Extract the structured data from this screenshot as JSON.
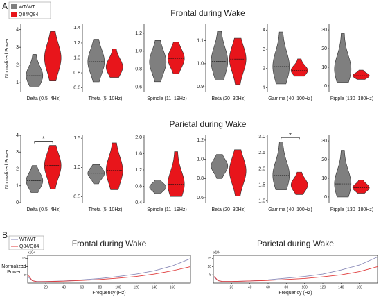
{
  "panel_labels": [
    "A",
    "B"
  ],
  "legend": [
    "WT/WT",
    "Q84/Q84"
  ],
  "colors": [
    "#7f7f7f",
    "#e8151b"
  ],
  "section_titles": [
    "Frontal during Wake",
    "Parietal during Wake"
  ],
  "chart_data": [
    {
      "type": "violin",
      "ylabel": "Normalized Power",
      "xlabel": "Delta (0.5–4Hz)",
      "ylim": [
        0.5,
        4.3
      ],
      "yticks": [
        1,
        2,
        3,
        4
      ],
      "groups": [
        {
          "median": 1.4,
          "min": 0.8,
          "max": 2.6
        },
        {
          "median": 2.4,
          "min": 1.1,
          "max": 3.9
        }
      ]
    },
    {
      "type": "violin",
      "xlabel": "Theta (5–10Hz)",
      "ylim": [
        0.55,
        1.45
      ],
      "yticks": [
        0.6,
        0.8,
        {
          "value": 1,
          "label": "1.0"
        },
        1.2,
        1.4
      ],
      "groups": [
        {
          "median": 0.95,
          "min": 0.68,
          "max": 1.25
        },
        {
          "median": 0.88,
          "min": 0.74,
          "max": 1.12
        }
      ]
    },
    {
      "type": "violin",
      "xlabel": "Spindle (11–19Hz)",
      "ylim": [
        0.55,
        1.3
      ],
      "yticks": [
        0.6,
        0.8,
        {
          "value": 1,
          "label": "1.0"
        },
        1.2
      ],
      "groups": [
        {
          "median": 0.88,
          "min": 0.66,
          "max": 1.12
        },
        {
          "median": 0.92,
          "min": 0.75,
          "max": 1.1
        }
      ]
    },
    {
      "type": "violin",
      "xlabel": "Beta (20–30Hz)",
      "ylim": [
        0.88,
        1.17
      ],
      "yticks": [
        0.9,
        {
          "value": 1,
          "label": "1.0"
        },
        1.1
      ],
      "groups": [
        {
          "median": 1.01,
          "min": 0.93,
          "max": 1.14
        },
        {
          "median": 1.02,
          "min": 0.91,
          "max": 1.11
        }
      ]
    },
    {
      "type": "violin",
      "xlabel": "Gamma (40–100Hz)",
      "ylim": [
        0.8,
        4.3
      ],
      "yticks": [
        1,
        2,
        3,
        4
      ],
      "groups": [
        {
          "median": 2.1,
          "min": 1.2,
          "max": 3.9
        },
        {
          "median": 1.9,
          "min": 1.6,
          "max": 2.5
        }
      ]
    },
    {
      "type": "violin",
      "xlabel": "Ripple (130–180Hz)",
      "ylim": [
        -3,
        33
      ],
      "yticks": [
        0,
        10,
        20,
        30
      ],
      "groups": [
        {
          "median": 9,
          "min": 2,
          "max": 28
        },
        {
          "median": 5.5,
          "min": 3.5,
          "max": 8.5
        }
      ]
    },
    {
      "type": "violin",
      "ylabel": "Normalized Power",
      "xlabel": "Delta (0.5–4Hz)",
      "ylim": [
        0,
        4
      ],
      "yticks": [
        0,
        1,
        2,
        3,
        4
      ],
      "significance": "*",
      "groups": [
        {
          "median": 1.3,
          "min": 0.6,
          "max": 2.2
        },
        {
          "median": 2.2,
          "min": 0.8,
          "max": 3.4
        }
      ]
    },
    {
      "type": "violin",
      "xlabel": "Theta (5–10Hz)",
      "ylim": [
        0.4,
        1.55
      ],
      "yticks": [
        0.5,
        {
          "value": 1,
          "label": "1.0"
        },
        1.5
      ],
      "groups": [
        {
          "median": 0.9,
          "min": 0.72,
          "max": 1.05
        },
        {
          "median": 0.95,
          "min": 0.62,
          "max": 1.42
        }
      ]
    },
    {
      "type": "violin",
      "xlabel": "Spindle (11–19Hz)",
      "ylim": [
        0.4,
        2.05
      ],
      "yticks": [
        0.4,
        0.8,
        1.2,
        1.6,
        {
          "value": 2,
          "label": "2.0"
        }
      ],
      "groups": [
        {
          "median": 0.78,
          "min": 0.62,
          "max": 0.95
        },
        {
          "median": 0.85,
          "min": 0.55,
          "max": 1.65
        }
      ]
    },
    {
      "type": "violin",
      "xlabel": "Beta (20–30Hz)",
      "ylim": [
        0.55,
        1.25
      ],
      "yticks": [
        0.6,
        0.8,
        {
          "value": 1,
          "label": "1.0"
        },
        1.2
      ],
      "groups": [
        {
          "median": 0.93,
          "min": 0.8,
          "max": 1.05
        },
        {
          "median": 0.88,
          "min": 0.62,
          "max": 1.1
        }
      ]
    },
    {
      "type": "violin",
      "xlabel": "Gamma (40–100Hz)",
      "ylim": [
        0.95,
        3.05
      ],
      "yticks": [
        {
          "value": 1,
          "label": "1.0"
        },
        1.5,
        {
          "value": 2,
          "label": "2.0"
        },
        2.5,
        {
          "value": 3,
          "label": "3.0"
        }
      ],
      "significance": "*",
      "groups": [
        {
          "median": 1.8,
          "min": 1.35,
          "max": 2.85
        },
        {
          "median": 1.5,
          "min": 1.2,
          "max": 1.9
        }
      ]
    },
    {
      "type": "violin",
      "xlabel": "Ripple (130–180Hz)",
      "ylim": [
        -3,
        33
      ],
      "yticks": [
        0,
        10,
        20,
        30
      ],
      "groups": [
        {
          "median": 7,
          "min": 0,
          "max": 25
        },
        {
          "median": 5,
          "min": 2,
          "max": 9
        }
      ]
    },
    {
      "type": "line",
      "title": "Frontal during Wake",
      "ylabel": "Normalized Power",
      "xlabel": "Frequency (Hz)",
      "y_multiplier": "x10⁴",
      "xlim": [
        0,
        180
      ],
      "xticks": [
        20,
        40,
        60,
        80,
        100,
        120,
        140,
        160
      ],
      "ylim": [
        0,
        17
      ],
      "yticks": [
        5,
        10,
        15
      ],
      "x": [
        1,
        5,
        10,
        20,
        40,
        60,
        80,
        100,
        120,
        140,
        160,
        180
      ],
      "series": [
        {
          "name": "WT/WT",
          "color": "#8a8ab8",
          "values": [
            3.5,
            1.5,
            1,
            1,
            1.3,
            2,
            2.8,
            4,
            5.5,
            7.5,
            10.5,
            15
          ]
        },
        {
          "name": "Q84/Q84",
          "color": "#e03a3a",
          "values": [
            4.5,
            1.5,
            0.8,
            0.9,
            1.2,
            1.6,
            2.2,
            3,
            4,
            5.5,
            7.5,
            10
          ]
        }
      ]
    },
    {
      "type": "line",
      "title": "Parietal during Wake",
      "xlabel": "Frequency (Hz)",
      "y_multiplier": "x10⁴",
      "xlim": [
        0,
        180
      ],
      "xticks": [
        20,
        40,
        60,
        80,
        100,
        120,
        140,
        160
      ],
      "ylim": [
        0,
        17
      ],
      "yticks": [
        5,
        10,
        15
      ],
      "x": [
        1,
        5,
        10,
        20,
        40,
        60,
        80,
        100,
        120,
        140,
        160,
        180
      ],
      "series": [
        {
          "values": [
            3.5,
            1.5,
            1,
            1,
            1.3,
            2,
            3,
            4,
            5.5,
            8,
            11,
            16
          ]
        },
        {
          "values": [
            4,
            1.5,
            1,
            1,
            1.3,
            1.6,
            2.2,
            2.8,
            3.8,
            5,
            7,
            10
          ]
        }
      ]
    }
  ]
}
